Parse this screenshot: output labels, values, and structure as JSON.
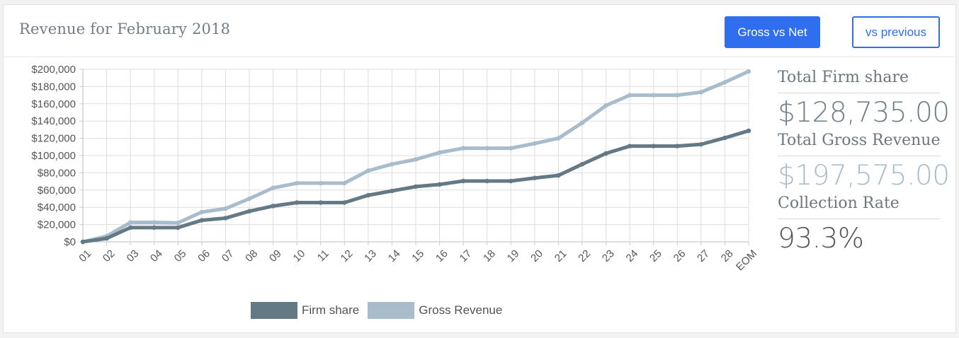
{
  "header": {
    "title": "Revenue for February 2018",
    "gross_vs_net_label": "Gross vs Net",
    "vs_previous_label": "vs previous"
  },
  "colors": {
    "accent": "#2f6fef",
    "firm_share": "#647986",
    "gross_revenue": "#a9bccb",
    "grid": "#dddddd"
  },
  "stats": [
    {
      "label": "Total Firm share",
      "value": "$128,735.00",
      "color": "#6e7f89"
    },
    {
      "label": "Total Gross Revenue",
      "value": "$197,575.00",
      "color": "#a9bccb"
    },
    {
      "label": "Collection Rate",
      "value": "93.3%",
      "color": "#555555"
    }
  ],
  "chart_data": {
    "type": "line",
    "categories": [
      "01",
      "02",
      "03",
      "04",
      "05",
      "06",
      "07",
      "08",
      "09",
      "10",
      "11",
      "12",
      "13",
      "14",
      "15",
      "16",
      "17",
      "18",
      "19",
      "20",
      "21",
      "22",
      "23",
      "24",
      "25",
      "26",
      "27",
      "28",
      "EOM"
    ],
    "series": [
      {
        "name": "Firm share",
        "color": "#647986",
        "values": [
          0,
          4000,
          16500,
          16500,
          16500,
          25000,
          27500,
          35500,
          41500,
          45500,
          45500,
          45500,
          54000,
          59000,
          64000,
          66500,
          70500,
          70500,
          70500,
          74000,
          77000,
          90000,
          102500,
          111000,
          111000,
          111000,
          113000,
          120500,
          128735
        ]
      },
      {
        "name": "Gross Revenue",
        "color": "#a9bccb",
        "values": [
          0,
          6500,
          22500,
          22500,
          22000,
          34500,
          38500,
          50000,
          62500,
          68000,
          68000,
          68000,
          82500,
          90000,
          95500,
          103500,
          108500,
          108500,
          108500,
          114000,
          120000,
          138000,
          158000,
          170000,
          170000,
          170000,
          173500,
          185000,
          197575
        ]
      }
    ],
    "ylim": [
      0,
      200000
    ],
    "yticks": [
      0,
      20000,
      40000,
      60000,
      80000,
      100000,
      120000,
      140000,
      160000,
      180000,
      200000
    ],
    "ytick_labels": [
      "$0",
      "$20,000",
      "$40,000",
      "$60,000",
      "$80,000",
      "$100,000",
      "$120,000",
      "$140,000",
      "$160,000",
      "$180,000",
      "$200,000"
    ],
    "grid": true,
    "legend": "bottom"
  }
}
